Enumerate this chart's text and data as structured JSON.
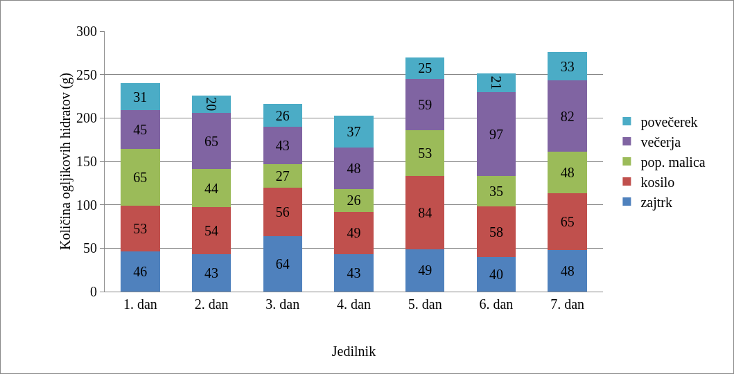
{
  "chart_data": {
    "type": "bar",
    "stacked": true,
    "xlabel": "Jedilnik",
    "ylabel": "Količina ogljikovih hidratov (g)",
    "categories": [
      "1. dan",
      "2. dan",
      "3. dan",
      "4. dan",
      "5. dan",
      "6. dan",
      "7. dan"
    ],
    "series": [
      {
        "name": "zajtrk",
        "color": "#4f81bd",
        "values": [
          46,
          43,
          64,
          43,
          49,
          40,
          48
        ]
      },
      {
        "name": "kosilo",
        "color": "#c0504d",
        "values": [
          53,
          54,
          56,
          49,
          84,
          58,
          65
        ]
      },
      {
        "name": "pop. malica",
        "color": "#9bbb59",
        "values": [
          65,
          44,
          27,
          26,
          53,
          35,
          48
        ]
      },
      {
        "name": "večerja",
        "color": "#8064a2",
        "values": [
          45,
          65,
          43,
          48,
          59,
          97,
          82
        ]
      },
      {
        "name": "povečerek",
        "color": "#4bacc6",
        "values": [
          31,
          20,
          26,
          37,
          25,
          21,
          33
        ]
      }
    ],
    "ylim": [
      0,
      300
    ],
    "yticks": [
      0,
      50,
      100,
      150,
      200,
      250,
      300
    ],
    "grid": "y",
    "legend": "right",
    "data_labels": true
  }
}
